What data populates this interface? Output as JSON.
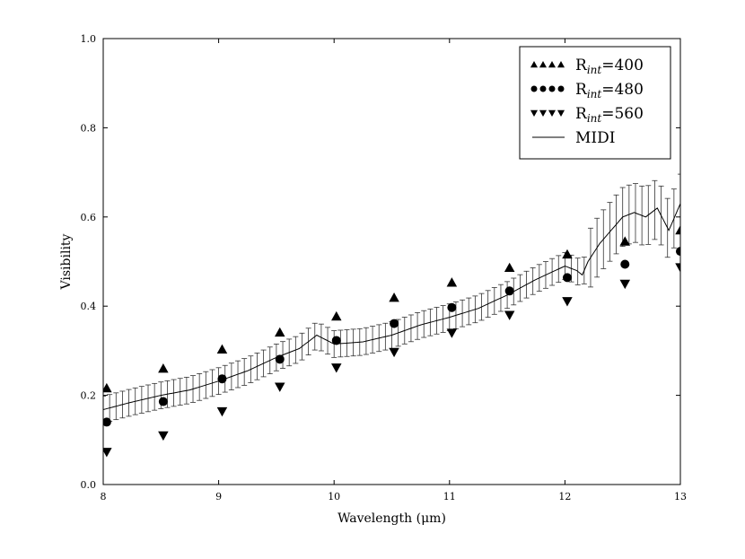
{
  "chart_data": {
    "type": "scatter",
    "xlabel": "Wavelength (μm)",
    "ylabel": "Visibility",
    "xlim": [
      8,
      13
    ],
    "ylim": [
      0.0,
      1.0
    ],
    "xticks": [
      "8",
      "9",
      "10",
      "11",
      "12",
      "13"
    ],
    "yticks": [
      "0.0",
      "0.2",
      "0.4",
      "0.6",
      "0.8",
      "1.0"
    ],
    "grid": false,
    "legend_position": "top-right",
    "series": [
      {
        "name": "R_int=400",
        "legend_label": "R",
        "legend_sub": "int",
        "legend_value": "=400",
        "marker": "triangle-up",
        "x": [
          8.03,
          8.52,
          9.03,
          9.53,
          10.02,
          10.52,
          11.02,
          11.52,
          12.02,
          12.52,
          13.0
        ],
        "y": [
          0.216,
          0.26,
          0.303,
          0.341,
          0.377,
          0.419,
          0.453,
          0.486,
          0.516,
          0.545,
          0.57
        ]
      },
      {
        "name": "R_int=480",
        "legend_label": "R",
        "legend_sub": "int",
        "legend_value": "=480",
        "marker": "circle",
        "x": [
          8.03,
          8.52,
          9.03,
          9.53,
          10.02,
          10.52,
          11.02,
          11.52,
          12.02,
          12.52,
          13.0
        ],
        "y": [
          0.14,
          0.186,
          0.237,
          0.281,
          0.323,
          0.361,
          0.397,
          0.434,
          0.464,
          0.494,
          0.523
        ]
      },
      {
        "name": "R_int=560",
        "legend_label": "R",
        "legend_sub": "int",
        "legend_value": "=560",
        "marker": "triangle-down",
        "x": [
          8.03,
          8.52,
          9.03,
          9.53,
          10.02,
          10.52,
          11.02,
          11.52,
          12.02,
          12.52,
          13.0
        ],
        "y": [
          0.073,
          0.11,
          0.164,
          0.219,
          0.262,
          0.297,
          0.34,
          0.38,
          0.411,
          0.45,
          0.487
        ]
      },
      {
        "name": "MIDI",
        "legend_label": "MIDI",
        "marker": "line",
        "error": 0.03,
        "x": [
          8.0,
          8.25,
          8.5,
          8.75,
          9.0,
          9.25,
          9.5,
          9.7,
          9.85,
          10.0,
          10.25,
          10.5,
          10.75,
          11.0,
          11.25,
          11.5,
          11.75,
          12.0,
          12.1,
          12.15,
          12.2,
          12.3,
          12.4,
          12.5,
          12.6,
          12.7,
          12.8,
          12.9,
          13.0
        ],
        "y": [
          0.168,
          0.185,
          0.2,
          0.212,
          0.232,
          0.255,
          0.285,
          0.305,
          0.335,
          0.315,
          0.32,
          0.335,
          0.358,
          0.375,
          0.395,
          0.425,
          0.46,
          0.49,
          0.48,
          0.47,
          0.5,
          0.54,
          0.57,
          0.6,
          0.61,
          0.6,
          0.62,
          0.57,
          0.63
        ]
      }
    ]
  }
}
